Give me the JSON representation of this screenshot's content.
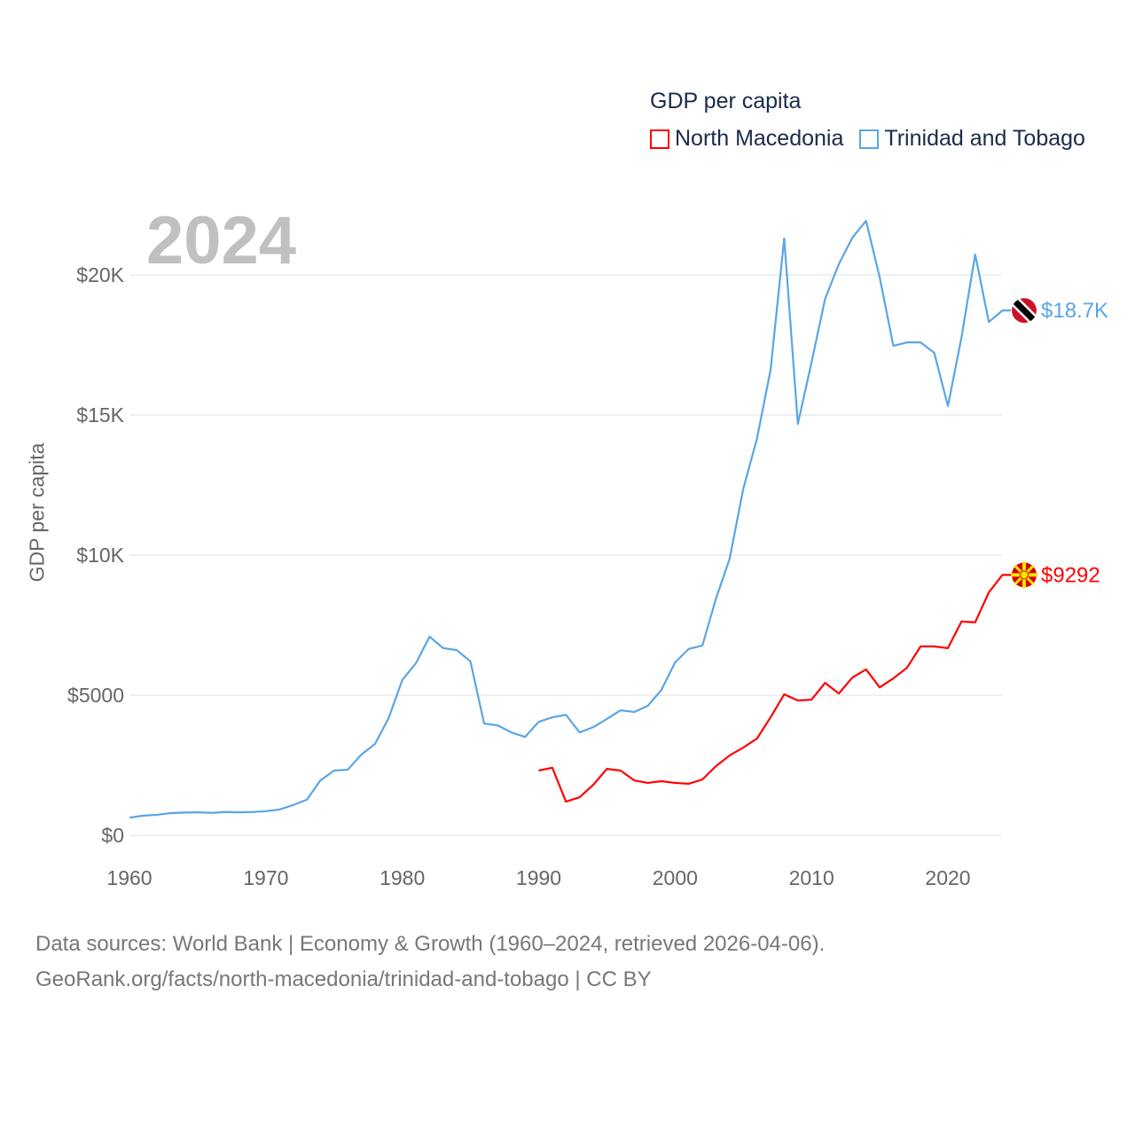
{
  "legend": {
    "title": "GDP per capita",
    "items": [
      {
        "label": "North Macedonia",
        "color": "#ff0000"
      },
      {
        "label": "Trinidad and Tobago",
        "color": "#5aa5e6"
      }
    ]
  },
  "year_badge": "2024",
  "footer": {
    "line1": "Data sources: World Bank | Economy & Growth (1960–2024, retrieved 2026-04-06).",
    "line2": "GeoRank.org/facts/north-macedonia/trinidad-and-tobago | CC BY"
  },
  "chart_data": {
    "type": "line",
    "title": "GDP per capita",
    "xlabel": "",
    "ylabel": "GDP per capita",
    "xlim": [
      1960,
      2024
    ],
    "ylim": [
      0,
      22000
    ],
    "grid": true,
    "legend_position": "top-right",
    "x_ticks": [
      1960,
      1970,
      1980,
      1990,
      2000,
      2010,
      2020
    ],
    "x_tick_labels": [
      "1960",
      "1970",
      "1980",
      "1990",
      "2000",
      "2010",
      "2020"
    ],
    "y_ticks": [
      0,
      5000,
      10000,
      15000,
      20000
    ],
    "y_tick_labels": [
      "$0",
      "$5000",
      "$10K",
      "$15K",
      "$20K"
    ],
    "series": [
      {
        "name": "Trinidad and Tobago",
        "color": "#5aa5e6",
        "end_label": "$18.7K",
        "start_year": 1960,
        "values": [
          630,
          700,
          730,
          790,
          810,
          820,
          800,
          830,
          820,
          830,
          860,
          920,
          1080,
          1270,
          1960,
          2310,
          2340,
          2880,
          3260,
          4180,
          5540,
          6140,
          7090,
          6680,
          6610,
          6200,
          3990,
          3920,
          3670,
          3510,
          4050,
          4210,
          4300,
          3670,
          3860,
          4150,
          4460,
          4400,
          4620,
          5190,
          6170,
          6650,
          6770,
          8450,
          9870,
          12370,
          14150,
          16610,
          21300,
          14680,
          16870,
          19150,
          20380,
          21330,
          21930,
          19910,
          17470,
          17590,
          17590,
          17220,
          15320,
          17780,
          20730,
          18320,
          18730
        ]
      },
      {
        "name": "North Macedonia",
        "color": "#ff0000",
        "end_label": "$9292",
        "start_year": 1990,
        "values": [
          2310,
          2410,
          1200,
          1360,
          1800,
          2370,
          2310,
          1960,
          1870,
          1930,
          1870,
          1840,
          1990,
          2470,
          2850,
          3130,
          3450,
          4210,
          5030,
          4810,
          4840,
          5440,
          5060,
          5630,
          5920,
          5280,
          5600,
          5980,
          6740,
          6740,
          6680,
          7630,
          7600,
          8670,
          9292
        ]
      }
    ]
  }
}
